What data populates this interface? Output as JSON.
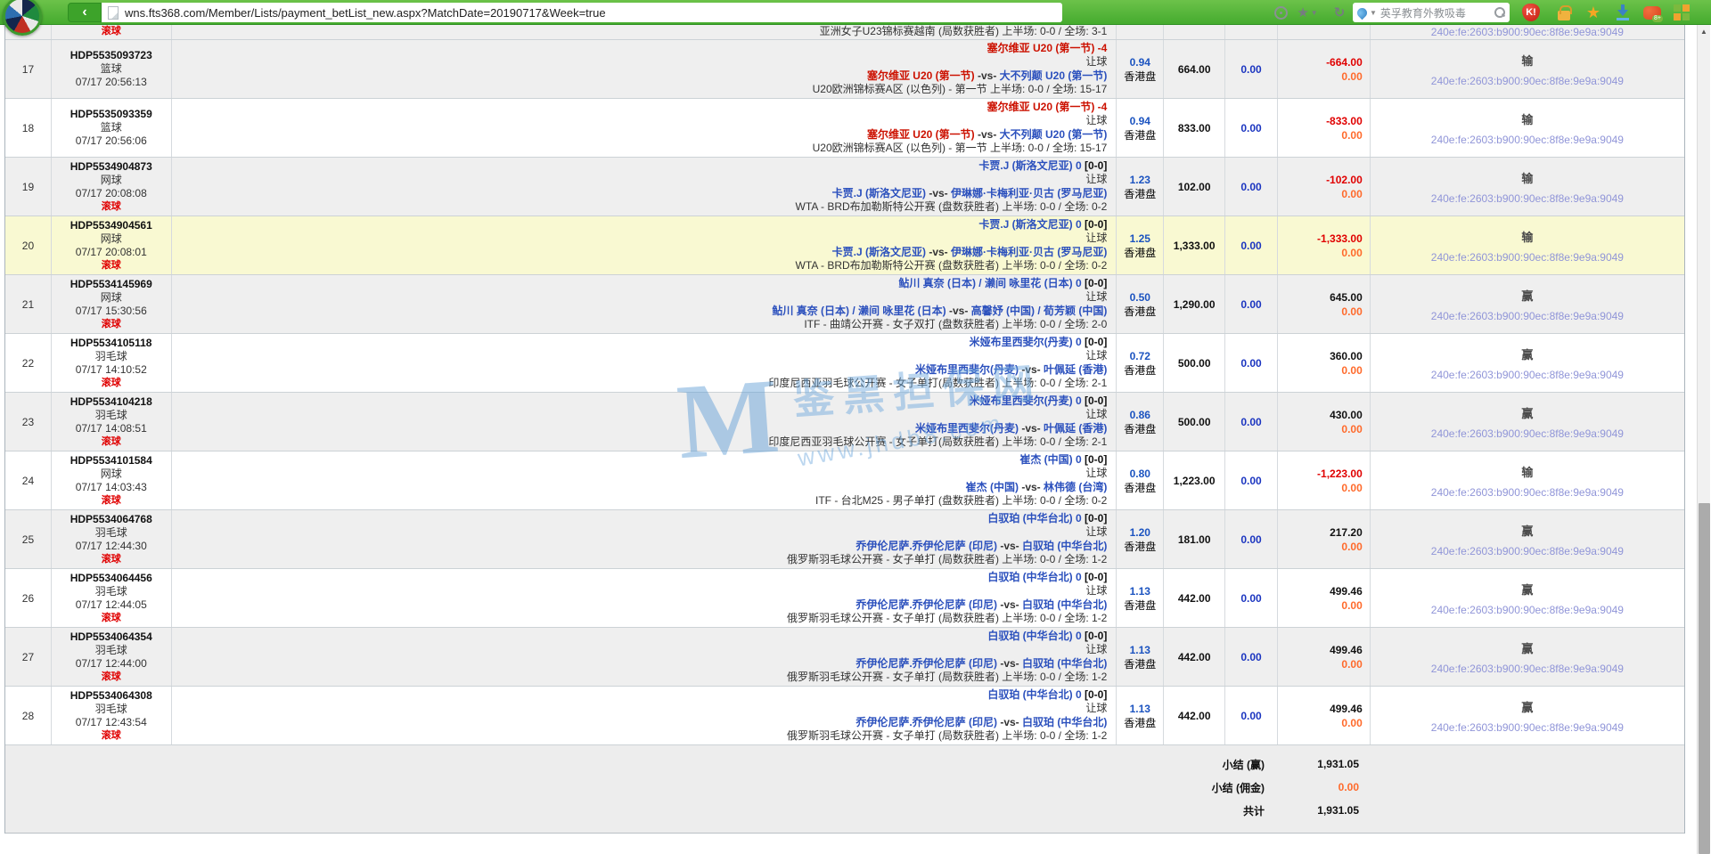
{
  "browser": {
    "url": "wns.fts368.com/Member/Lists/payment_betList_new.aspx?MatchDate=20190717&Week=true",
    "back_glyph": "‹",
    "search_text": "英孚教育外教吸毒",
    "icons": [
      "ball-logo",
      "back-button",
      "page-icon",
      "nav-wheel-icon",
      "bookmark-star-icon",
      "refresh-icon",
      "search-engine-icon",
      "magnifier-icon",
      "security-shield-icon",
      "lock-icon",
      "favorite-star-icon",
      "download-icon",
      "games-icon",
      "apps-grid-icon"
    ]
  },
  "watermark": {
    "logo": "M",
    "line1": "鉴黑担保网",
    "line2": "www.jhdb8.com"
  },
  "partial_row": {
    "live": "滚球",
    "league": "亚洲女子U23锦标赛越南 (局数获胜者)  上半场: 0-0 / 全场: 3-1",
    "ip": "240e:fe:2603:b900:90ec:8f8e:9e9a:9049"
  },
  "rows": [
    {
      "num": "17",
      "id": "HDP5535093723",
      "sport": "篮球",
      "time": "07/17 20:56:13",
      "live": false,
      "choice": "塞尔维亚 U20 (第一节) -4",
      "choice_color": "red",
      "score": "",
      "bet_type": "让球",
      "home": "塞尔维亚 U20 (第一节)",
      "home_color": "red",
      "away": "大不列颠 U20 (第一节)",
      "away_color": "blue",
      "league": "U20欧洲锦标赛A区 (以色列) - 第一节  上半场: 0-0 / 全场: 15-17",
      "odds": "0.94",
      "odds_type": "香港盘",
      "amount": "664.00",
      "valid": "0.00",
      "winloss": "-664.00",
      "winloss_color": "red",
      "commission": "0.00",
      "result": "输",
      "ip": "240e:fe:2603:b900:90ec:8f8e:9e9a:9049",
      "stripe": "gray",
      "highlight": false
    },
    {
      "num": "18",
      "id": "HDP5535093359",
      "sport": "篮球",
      "time": "07/17 20:56:06",
      "live": false,
      "choice": "塞尔维亚 U20 (第一节) -4",
      "choice_color": "red",
      "score": "",
      "bet_type": "让球",
      "home": "塞尔维亚 U20 (第一节)",
      "home_color": "red",
      "away": "大不列颠 U20 (第一节)",
      "away_color": "blue",
      "league": "U20欧洲锦标赛A区 (以色列) - 第一节  上半场: 0-0 / 全场: 15-17",
      "odds": "0.94",
      "odds_type": "香港盘",
      "amount": "833.00",
      "valid": "0.00",
      "winloss": "-833.00",
      "winloss_color": "red",
      "commission": "0.00",
      "result": "输",
      "ip": "240e:fe:2603:b900:90ec:8f8e:9e9a:9049",
      "stripe": "white",
      "highlight": false
    },
    {
      "num": "19",
      "id": "HDP5534904873",
      "sport": "网球",
      "time": "07/17 20:08:08",
      "live": true,
      "choice": "卡贾.J (斯洛文尼亚) 0",
      "choice_color": "blue",
      "score": "[0-0]",
      "bet_type": "让球",
      "home": "卡贾.J (斯洛文尼亚)",
      "home_color": "blue",
      "away": "伊琳娜·卡梅利亚·贝古 (罗马尼亚)",
      "away_color": "blue",
      "league": "WTA - BRD布加勒斯特公开赛 (盘数获胜者)  上半场: 0-0 / 全场: 0-2",
      "odds": "1.23",
      "odds_type": "香港盘",
      "amount": "102.00",
      "valid": "0.00",
      "winloss": "-102.00",
      "winloss_color": "red",
      "commission": "0.00",
      "result": "输",
      "ip": "240e:fe:2603:b900:90ec:8f8e:9e9a:9049",
      "stripe": "gray",
      "highlight": false
    },
    {
      "num": "20",
      "id": "HDP5534904561",
      "sport": "网球",
      "time": "07/17 20:08:01",
      "live": true,
      "choice": "卡贾.J (斯洛文尼亚) 0",
      "choice_color": "blue",
      "score": "[0-0]",
      "bet_type": "让球",
      "home": "卡贾.J (斯洛文尼亚)",
      "home_color": "blue",
      "away": "伊琳娜·卡梅利亚·贝古 (罗马尼亚)",
      "away_color": "blue",
      "league": "WTA - BRD布加勒斯特公开赛 (盘数获胜者)  上半场: 0-0 / 全场: 0-2",
      "odds": "1.25",
      "odds_type": "香港盘",
      "amount": "1,333.00",
      "valid": "0.00",
      "winloss": "-1,333.00",
      "winloss_color": "red",
      "commission": "0.00",
      "result": "输",
      "ip": "240e:fe:2603:b900:90ec:8f8e:9e9a:9049",
      "stripe": "white",
      "highlight": true
    },
    {
      "num": "21",
      "id": "HDP5534145969",
      "sport": "网球",
      "time": "07/17 15:30:56",
      "live": true,
      "choice": "鲇川 真奈 (日本) / 濑间 咏里花 (日本) 0",
      "choice_color": "blue",
      "score": "[0-0]",
      "bet_type": "让球",
      "home": "鲇川 真奈 (日本) / 濑间 咏里花 (日本)",
      "home_color": "blue",
      "away": "高馨妤 (中国) / 荀芳颖 (中国)",
      "away_color": "blue",
      "league": "ITF - 曲靖公开赛 - 女子双打 (盘数获胜者)  上半场: 0-0 / 全场: 2-0",
      "odds": "0.50",
      "odds_type": "香港盘",
      "amount": "1,290.00",
      "valid": "0.00",
      "winloss": "645.00",
      "winloss_color": "black",
      "commission": "0.00",
      "result": "赢",
      "ip": "240e:fe:2603:b900:90ec:8f8e:9e9a:9049",
      "stripe": "gray",
      "highlight": false
    },
    {
      "num": "22",
      "id": "HDP5534105118",
      "sport": "羽毛球",
      "time": "07/17 14:10:52",
      "live": true,
      "choice": "米娅布里西斐尔(丹麦) 0",
      "choice_color": "blue",
      "score": "[0-0]",
      "bet_type": "让球",
      "home": "米娅布里西斐尔(丹麦)",
      "home_color": "blue",
      "away": "叶佩延 (香港)",
      "away_color": "blue",
      "league": "印度尼西亚羽毛球公开赛 - 女子单打(局数获胜者)  上半场: 0-0 / 全场: 2-1",
      "odds": "0.72",
      "odds_type": "香港盘",
      "amount": "500.00",
      "valid": "0.00",
      "winloss": "360.00",
      "winloss_color": "black",
      "commission": "0.00",
      "result": "赢",
      "ip": "240e:fe:2603:b900:90ec:8f8e:9e9a:9049",
      "stripe": "white",
      "highlight": false
    },
    {
      "num": "23",
      "id": "HDP5534104218",
      "sport": "羽毛球",
      "time": "07/17 14:08:51",
      "live": true,
      "choice": "米娅布里西斐尔(丹麦) 0",
      "choice_color": "blue",
      "score": "[0-0]",
      "bet_type": "让球",
      "home": "米娅布里西斐尔(丹麦)",
      "home_color": "blue",
      "away": "叶佩延 (香港)",
      "away_color": "blue",
      "league": "印度尼西亚羽毛球公开赛 - 女子单打(局数获胜者)  上半场: 0-0 / 全场: 2-1",
      "odds": "0.86",
      "odds_type": "香港盘",
      "amount": "500.00",
      "valid": "0.00",
      "winloss": "430.00",
      "winloss_color": "black",
      "commission": "0.00",
      "result": "赢",
      "ip": "240e:fe:2603:b900:90ec:8f8e:9e9a:9049",
      "stripe": "gray",
      "highlight": false
    },
    {
      "num": "24",
      "id": "HDP5534101584",
      "sport": "网球",
      "time": "07/17 14:03:43",
      "live": true,
      "choice": "崔杰 (中国) 0",
      "choice_color": "blue",
      "score": "[0-0]",
      "bet_type": "让球",
      "home": "崔杰 (中国)",
      "home_color": "blue",
      "away": "林伟德 (台湾)",
      "away_color": "blue",
      "league": "ITF - 台北M25 - 男子单打 (盘数获胜者)  上半场: 0-0 / 全场: 0-2",
      "odds": "0.80",
      "odds_type": "香港盘",
      "amount": "1,223.00",
      "valid": "0.00",
      "winloss": "-1,223.00",
      "winloss_color": "red",
      "commission": "0.00",
      "result": "输",
      "ip": "240e:fe:2603:b900:90ec:8f8e:9e9a:9049",
      "stripe": "white",
      "highlight": false
    },
    {
      "num": "25",
      "id": "HDP5534064768",
      "sport": "羽毛球",
      "time": "07/17 12:44:30",
      "live": true,
      "choice": "白驭珀 (中华台北) 0",
      "choice_color": "blue",
      "score": "[0-0]",
      "bet_type": "让球",
      "home": "乔伊伦尼萨.乔伊伦尼萨 (印尼)",
      "home_color": "blue",
      "away": "白驭珀 (中华台北)",
      "away_color": "blue",
      "league": "俄罗斯羽毛球公开赛 - 女子单打 (局数获胜者)  上半场: 0-0 / 全场: 1-2",
      "odds": "1.20",
      "odds_type": "香港盘",
      "amount": "181.00",
      "valid": "0.00",
      "winloss": "217.20",
      "winloss_color": "black",
      "commission": "0.00",
      "result": "赢",
      "ip": "240e:fe:2603:b900:90ec:8f8e:9e9a:9049",
      "stripe": "gray",
      "highlight": false
    },
    {
      "num": "26",
      "id": "HDP5534064456",
      "sport": "羽毛球",
      "time": "07/17 12:44:05",
      "live": true,
      "choice": "白驭珀 (中华台北) 0",
      "choice_color": "blue",
      "score": "[0-0]",
      "bet_type": "让球",
      "home": "乔伊伦尼萨.乔伊伦尼萨 (印尼)",
      "home_color": "blue",
      "away": "白驭珀 (中华台北)",
      "away_color": "blue",
      "league": "俄罗斯羽毛球公开赛 - 女子单打 (局数获胜者)  上半场: 0-0 / 全场: 1-2",
      "odds": "1.13",
      "odds_type": "香港盘",
      "amount": "442.00",
      "valid": "0.00",
      "winloss": "499.46",
      "winloss_color": "black",
      "commission": "0.00",
      "result": "赢",
      "ip": "240e:fe:2603:b900:90ec:8f8e:9e9a:9049",
      "stripe": "white",
      "highlight": false
    },
    {
      "num": "27",
      "id": "HDP5534064354",
      "sport": "羽毛球",
      "time": "07/17 12:44:00",
      "live": true,
      "choice": "白驭珀 (中华台北) 0",
      "choice_color": "blue",
      "score": "[0-0]",
      "bet_type": "让球",
      "home": "乔伊伦尼萨.乔伊伦尼萨 (印尼)",
      "home_color": "blue",
      "away": "白驭珀 (中华台北)",
      "away_color": "blue",
      "league": "俄罗斯羽毛球公开赛 - 女子单打 (局数获胜者)  上半场: 0-0 / 全场: 1-2",
      "odds": "1.13",
      "odds_type": "香港盘",
      "amount": "442.00",
      "valid": "0.00",
      "winloss": "499.46",
      "winloss_color": "black",
      "commission": "0.00",
      "result": "赢",
      "ip": "240e:fe:2603:b900:90ec:8f8e:9e9a:9049",
      "stripe": "gray",
      "highlight": false
    },
    {
      "num": "28",
      "id": "HDP5534064308",
      "sport": "羽毛球",
      "time": "07/17 12:43:54",
      "live": true,
      "choice": "白驭珀 (中华台北) 0",
      "choice_color": "blue",
      "score": "[0-0]",
      "bet_type": "让球",
      "home": "乔伊伦尼萨.乔伊伦尼萨 (印尼)",
      "home_color": "blue",
      "away": "白驭珀 (中华台北)",
      "away_color": "blue",
      "league": "俄罗斯羽毛球公开赛 - 女子单打 (局数获胜者)  上半场: 0-0 / 全场: 1-2",
      "odds": "1.13",
      "odds_type": "香港盘",
      "amount": "442.00",
      "valid": "0.00",
      "winloss": "499.46",
      "winloss_color": "black",
      "commission": "0.00",
      "result": "赢",
      "ip": "240e:fe:2603:b900:90ec:8f8e:9e9a:9049",
      "stripe": "white",
      "highlight": false
    }
  ],
  "summary": {
    "rows": [
      {
        "label": "小结 (赢)",
        "value": "1,931.05",
        "color": "black"
      },
      {
        "label": "小结 (佣金)",
        "value": "0.00",
        "color": "orange"
      },
      {
        "label": "共计",
        "value": "1,931.05",
        "color": "black"
      }
    ]
  },
  "colors": {
    "chrome_green": "#4fb238",
    "pick_red": "#cc1100",
    "pick_blue": "#2b50bd",
    "loss_red": "#e00000",
    "commission_orange": "#ff6a2b",
    "ip_lavender": "#9095d8",
    "highlight_yellow": "#f9f9d2",
    "stripe_gray": "#efefef"
  }
}
